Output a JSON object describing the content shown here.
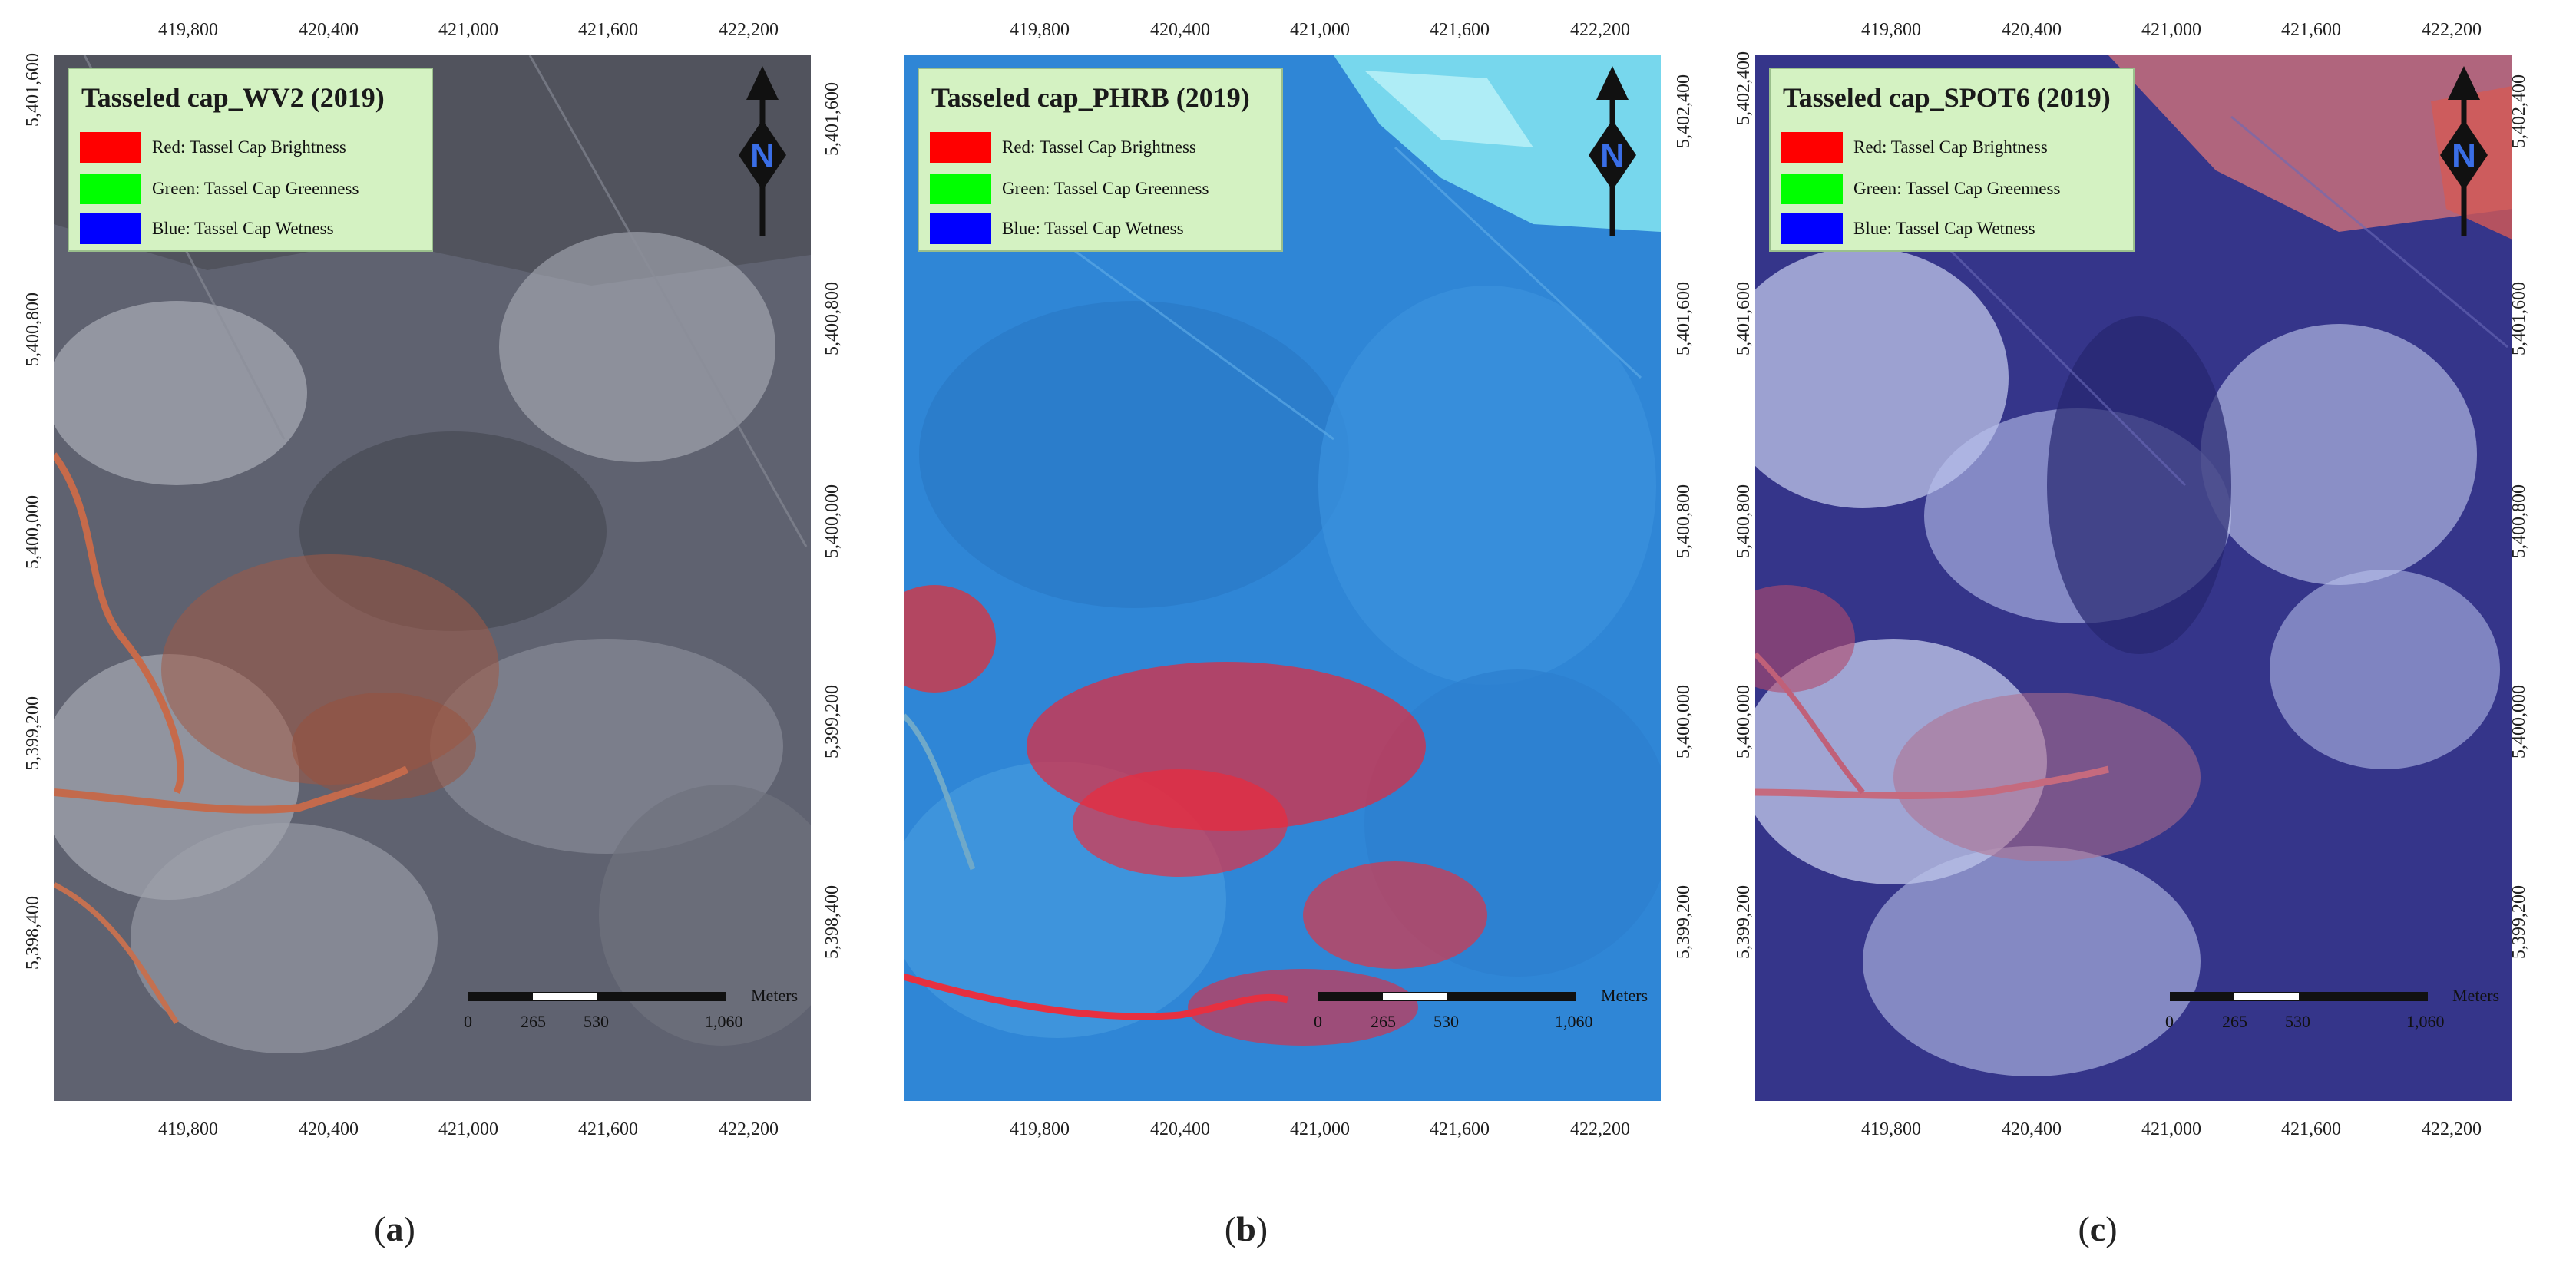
{
  "x_ticks": [
    "419,800",
    "420,400",
    "421,000",
    "421,600",
    "422,200"
  ],
  "panels": [
    {
      "id": "a",
      "title": "Tasseled cap_WV2 (2019)",
      "left_ticks": [
        "5,401,600",
        "5,400,800",
        "5,400,000",
        "5,399,200",
        "5,398,400"
      ],
      "right_ticks": [
        "5,401,600",
        "5,400,800",
        "5,400,000",
        "5,399,200",
        "5,398,400"
      ],
      "caption_letter": "a",
      "base_color": "#5c5f6b"
    },
    {
      "id": "b",
      "title": "Tasseled cap_PHRB (2019)",
      "left_ticks": [
        "5,402,400",
        "5,401,600",
        "5,400,800",
        "5,400,000",
        "5,399,200"
      ],
      "right_ticks": [
        "5,402,400",
        "5,401,600",
        "5,400,800",
        "5,400,000",
        "5,399,200"
      ],
      "caption_letter": "b",
      "base_color": "#2f86d6"
    },
    {
      "id": "c",
      "title": "Tasseled cap_SPOT6 (2019)",
      "left_ticks": [
        "5,402,400",
        "5,401,600",
        "5,400,800",
        "5,400,000",
        "5,399,200"
      ],
      "right_ticks": [
        "5,402,400",
        "5,401,600",
        "5,400,800",
        "5,400,000",
        "5,399,200"
      ],
      "caption_letter": "c",
      "base_color": "#35358a"
    }
  ],
  "legend": [
    {
      "label": "Red: Tassel Cap Brightness",
      "color": "#ff0000"
    },
    {
      "label": "Green: Tassel Cap Greenness",
      "color": "#00ff00"
    },
    {
      "label": "Blue: Tassel Cap Wetness",
      "color": "#0000ff"
    }
  ],
  "north_label": "N",
  "scale": {
    "labels": [
      "0",
      "265",
      "530",
      "1,060"
    ],
    "unit": "Meters"
  }
}
